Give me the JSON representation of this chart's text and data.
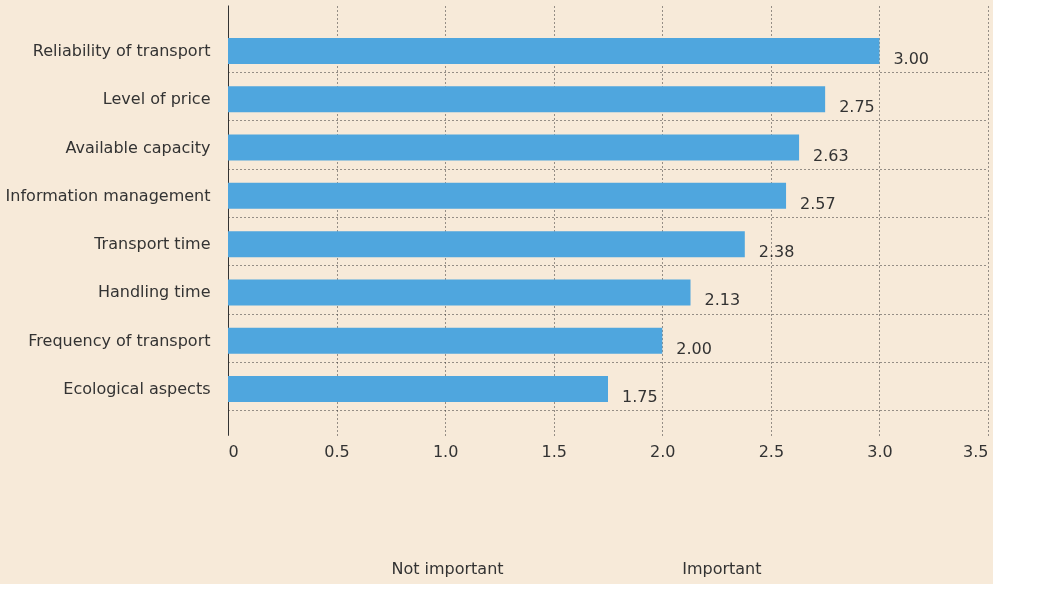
{
  "chart_data": {
    "type": "bar",
    "orientation": "horizontal",
    "categories": [
      "Reliability of transport",
      "Level of price",
      "Available capacity",
      "Information management",
      "Transport time",
      "Handling time",
      "Frequency of transport",
      "Ecological aspects"
    ],
    "values": [
      3.0,
      2.75,
      2.63,
      2.57,
      2.38,
      2.13,
      2.0,
      1.75
    ],
    "value_labels": [
      "3.00",
      "2.75",
      "2.63",
      "2.57",
      "2.38",
      "2.13",
      "2.00",
      "1.75"
    ],
    "color": "#4fa6de",
    "xlim": [
      0,
      3.5
    ],
    "xticks": [
      0,
      {
        "value": 0.5,
        "label": "0.5"
      },
      {
        "value": 1,
        "label": "1.0"
      },
      {
        "value": 1.5,
        "label": "1.5"
      },
      {
        "value": 2,
        "label": "2.0"
      },
      {
        "value": 2.5,
        "label": "2.5"
      },
      {
        "value": 3,
        "label": "3.0"
      },
      {
        "value": 3.5,
        "label": "3.5"
      }
    ],
    "grid": true,
    "annotations": [
      "Not important",
      "Important"
    ]
  }
}
